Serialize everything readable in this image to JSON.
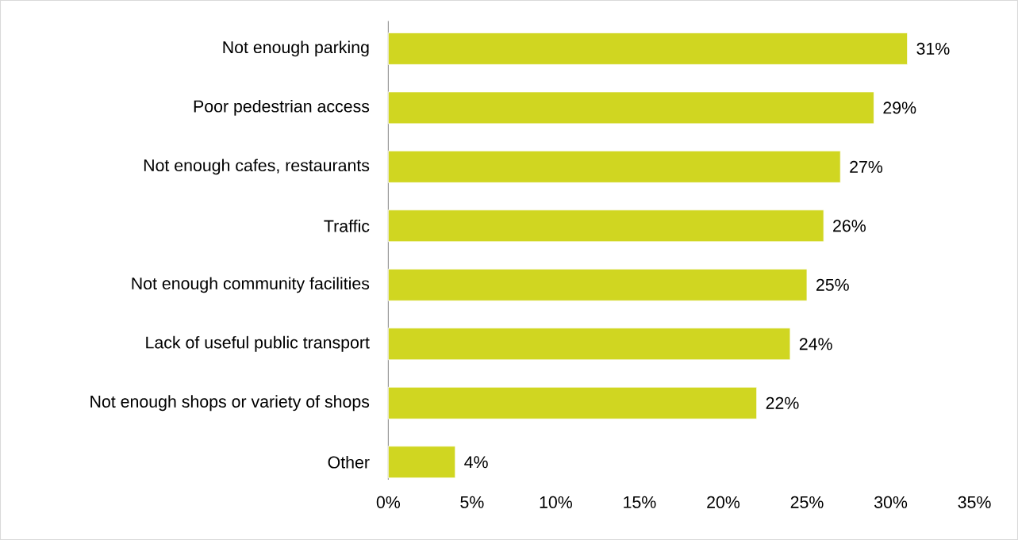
{
  "chart_data": {
    "type": "bar",
    "orientation": "horizontal",
    "categories": [
      "Not enough parking",
      "Poor pedestrian access",
      "Not enough cafes, restaurants",
      "Traffic",
      "Not enough community facilities",
      "Lack of useful public transport",
      "Not enough shops or variety of shops",
      "Other"
    ],
    "values": [
      31,
      29,
      27,
      26,
      25,
      24,
      22,
      4
    ],
    "value_labels": [
      "31%",
      "29%",
      "27%",
      "26%",
      "25%",
      "24%",
      "22%",
      "4%"
    ],
    "color": "#d0d621",
    "xlim": [
      0,
      35
    ],
    "xticks": [
      {
        "value": 0,
        "label": "0%"
      },
      {
        "value": 5,
        "label": "5%"
      },
      {
        "value": 10,
        "label": "10%"
      },
      {
        "value": 15,
        "label": "15%"
      },
      {
        "value": 20,
        "label": "20%"
      },
      {
        "value": 25,
        "label": "25%"
      },
      {
        "value": 30,
        "label": "30%"
      },
      {
        "value": 35,
        "label": "35%"
      }
    ]
  }
}
